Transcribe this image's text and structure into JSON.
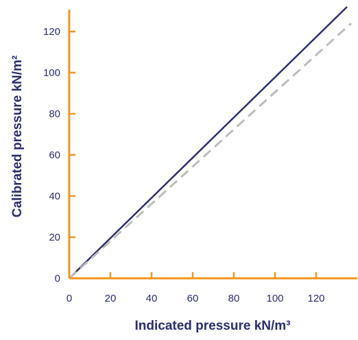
{
  "chart_data": {
    "type": "line",
    "xlabel": "Indicated pressure kN/m³",
    "ylabel": "Calibrated pressure kN/m²",
    "xlim": [
      0,
      140
    ],
    "ylim": [
      0,
      132
    ],
    "xticks": [
      "0",
      "20",
      "40",
      "60",
      "80",
      "100",
      "120"
    ],
    "yticks": [
      "0",
      "20",
      "40",
      "60",
      "80",
      "100",
      "120"
    ],
    "grid": false,
    "series": [
      {
        "style": "solid",
        "color": "#2b2d6e",
        "x": [
          0,
          135
        ],
        "y": [
          0,
          132
        ]
      },
      {
        "style": "dashed",
        "color": "#bdbdbd",
        "x": [
          0,
          137
        ],
        "y": [
          0,
          124
        ]
      }
    ],
    "axis_color": "#f7941d"
  }
}
